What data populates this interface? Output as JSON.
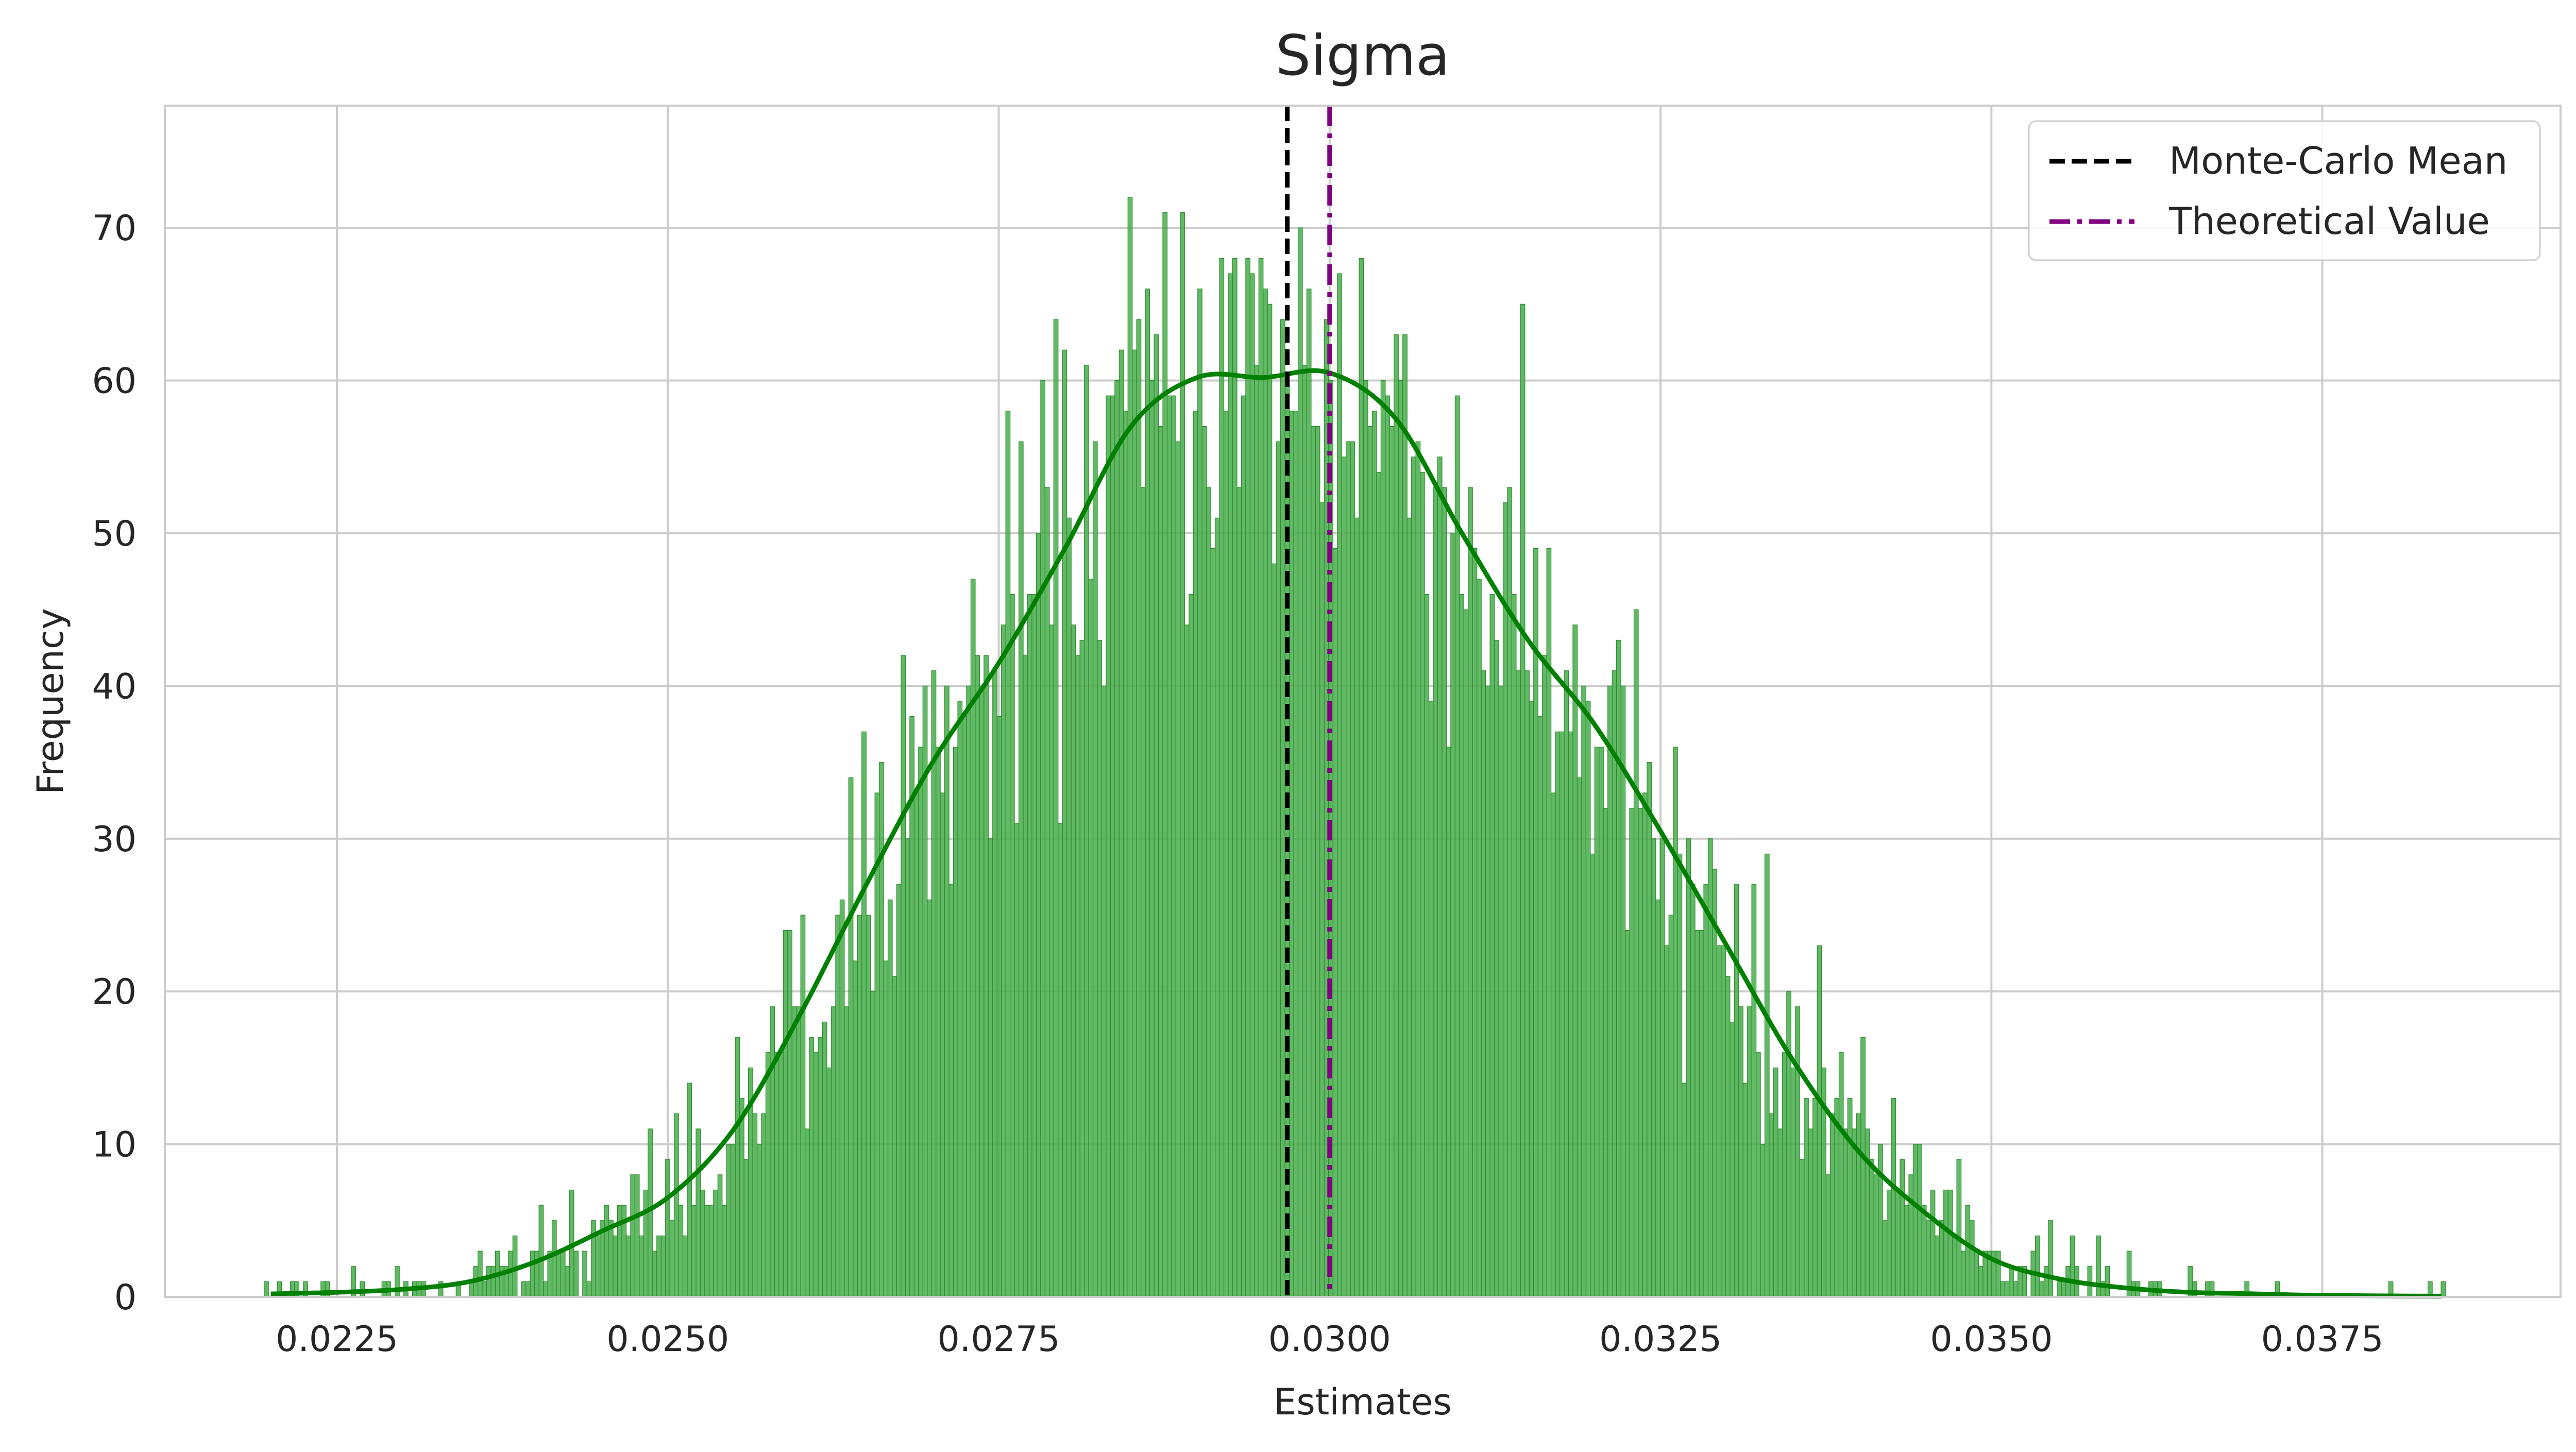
{
  "chart_data": {
    "type": "bar",
    "subtype": "histogram-with-kde",
    "title": "Sigma",
    "xlabel": "Estimates",
    "ylabel": "Frequency",
    "xlim": [
      0.0212,
      0.0393
    ],
    "ylim": [
      0,
      78
    ],
    "x_ticks": [
      0.0225,
      0.025,
      0.0275,
      0.03,
      0.0325,
      0.035,
      0.0375
    ],
    "x_tick_labels": [
      "0.0225",
      "0.0250",
      "0.0275",
      "0.0300",
      "0.0325",
      "0.0350",
      "0.0375"
    ],
    "y_ticks": [
      0,
      10,
      20,
      30,
      40,
      50,
      60,
      70
    ],
    "y_tick_labels": [
      "0",
      "10",
      "20",
      "30",
      "40",
      "50",
      "60",
      "70"
    ],
    "grid": true,
    "legend_position": "top-right",
    "histogram": {
      "range": [
        0.02195,
        0.03843
      ],
      "bins": 500,
      "center": 0.02985,
      "peak": 60.3,
      "bar_color": "#4caf50",
      "edge_color": "#2e8b2e",
      "max_observed": 74
    },
    "kde": {
      "color": "#008000",
      "points": [
        {
          "x": 0.022,
          "y": 0.2
        },
        {
          "x": 0.0225,
          "y": 0.3
        },
        {
          "x": 0.023,
          "y": 0.5
        },
        {
          "x": 0.0235,
          "y": 1.0
        },
        {
          "x": 0.024,
          "y": 2.3
        },
        {
          "x": 0.0245,
          "y": 4.3
        },
        {
          "x": 0.025,
          "y": 6.5
        },
        {
          "x": 0.0255,
          "y": 11.0
        },
        {
          "x": 0.026,
          "y": 18.5
        },
        {
          "x": 0.0265,
          "y": 27.0
        },
        {
          "x": 0.027,
          "y": 35.0
        },
        {
          "x": 0.0275,
          "y": 41.5
        },
        {
          "x": 0.028,
          "y": 49.0
        },
        {
          "x": 0.0285,
          "y": 57.0
        },
        {
          "x": 0.029,
          "y": 60.2
        },
        {
          "x": 0.0295,
          "y": 60.2
        },
        {
          "x": 0.03,
          "y": 60.5
        },
        {
          "x": 0.0305,
          "y": 57.5
        },
        {
          "x": 0.031,
          "y": 50.0
        },
        {
          "x": 0.0315,
          "y": 43.0
        },
        {
          "x": 0.032,
          "y": 37.5
        },
        {
          "x": 0.0325,
          "y": 30.5
        },
        {
          "x": 0.033,
          "y": 23.0
        },
        {
          "x": 0.0335,
          "y": 15.5
        },
        {
          "x": 0.034,
          "y": 9.5
        },
        {
          "x": 0.0345,
          "y": 5.5
        },
        {
          "x": 0.035,
          "y": 2.5
        },
        {
          "x": 0.0355,
          "y": 1.2
        },
        {
          "x": 0.036,
          "y": 0.6
        },
        {
          "x": 0.0365,
          "y": 0.3
        },
        {
          "x": 0.037,
          "y": 0.2
        },
        {
          "x": 0.0375,
          "y": 0.1
        },
        {
          "x": 0.0384,
          "y": 0.05
        }
      ]
    },
    "reference_lines": [
      {
        "name": "Monte-Carlo Mean",
        "x": 0.02968,
        "color": "#000000",
        "style": "dashed"
      },
      {
        "name": "Theoretical Value",
        "x": 0.03,
        "color": "#800080",
        "style": "dashdot"
      }
    ]
  }
}
